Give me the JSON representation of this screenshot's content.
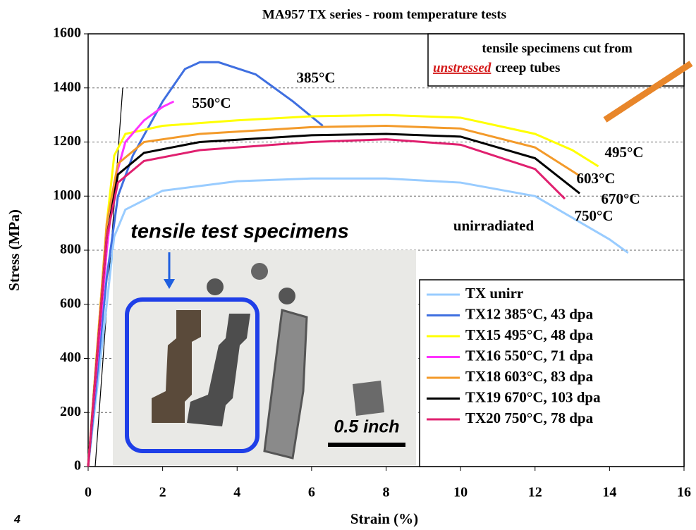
{
  "chart_data": {
    "type": "line",
    "title": "MA957 TX series - room temperature tests",
    "xlabel": "Strain (%)",
    "ylabel": "Stress (MPa)",
    "xlim": [
      0,
      16
    ],
    "xticks": [
      0,
      2,
      4,
      6,
      8,
      10,
      12,
      14,
      16
    ],
    "ylim": [
      0,
      1600
    ],
    "yticks": [
      0,
      200,
      400,
      600,
      800,
      1000,
      1200,
      1400,
      1600
    ],
    "grid": true,
    "legend": "lower right",
    "series": [
      {
        "name": "TX unirr",
        "color": "#99ccff",
        "x": [
          0,
          0.5,
          0.7,
          1,
          2,
          4,
          6,
          8,
          10,
          12,
          13,
          14,
          14.5
        ],
        "values": [
          0,
          600,
          850,
          950,
          1020,
          1055,
          1065,
          1065,
          1050,
          1000,
          920,
          840,
          790
        ]
      },
      {
        "name": "TX12 385°C, 43 dpa",
        "color": "#3f6fe0",
        "x": [
          0,
          0.5,
          0.8,
          1.2,
          2,
          2.6,
          3,
          3.5,
          4.5,
          5.5,
          6.3
        ],
        "values": [
          0,
          700,
          1000,
          1150,
          1350,
          1470,
          1495,
          1495,
          1450,
          1350,
          1260
        ]
      },
      {
        "name": "TX15 495°C, 48 dpa",
        "color": "#ffff00",
        "x": [
          0,
          0.5,
          0.7,
          1,
          2,
          4,
          6,
          8,
          10,
          12,
          13,
          13.7
        ],
        "values": [
          0,
          900,
          1150,
          1230,
          1260,
          1280,
          1295,
          1300,
          1290,
          1230,
          1170,
          1110
        ]
      },
      {
        "name": "TX16 550°C, 71 dpa",
        "color": "#ff33ff",
        "x": [
          0,
          0.5,
          0.7,
          1,
          1.5,
          2,
          2.3
        ],
        "values": [
          0,
          800,
          1050,
          1200,
          1280,
          1330,
          1350
        ]
      },
      {
        "name": "TX18 603°C, 83 dpa",
        "color": "#f39a2a",
        "x": [
          0,
          0.5,
          0.8,
          1.5,
          3,
          6,
          8,
          10,
          12,
          13.2
        ],
        "values": [
          0,
          900,
          1120,
          1200,
          1230,
          1255,
          1260,
          1250,
          1180,
          1075
        ]
      },
      {
        "name": "TX19 670°C, 103 dpa",
        "color": "#000000",
        "x": [
          0,
          0.5,
          0.8,
          1.5,
          3,
          6,
          8,
          10,
          12,
          13.2
        ],
        "values": [
          0,
          850,
          1080,
          1160,
          1200,
          1225,
          1230,
          1220,
          1140,
          1010
        ]
      },
      {
        "name": "TX20 750°C, 78 dpa",
        "color": "#e0206f",
        "x": [
          0,
          0.5,
          0.8,
          1.5,
          3,
          6,
          8,
          10,
          12,
          12.8
        ],
        "values": [
          0,
          850,
          1050,
          1130,
          1170,
          1200,
          1210,
          1190,
          1100,
          990
        ]
      }
    ],
    "annotations": [
      "385°C",
      "550°C",
      "495°C",
      "603°C",
      "670°C",
      "750°C",
      "unirradiated"
    ],
    "note": [
      "tensile specimens cut from",
      "unstressed",
      "creep tubes"
    ],
    "photo_labels": [
      "tensile test specimens",
      "0.5 inch"
    ],
    "page_number": "4"
  }
}
